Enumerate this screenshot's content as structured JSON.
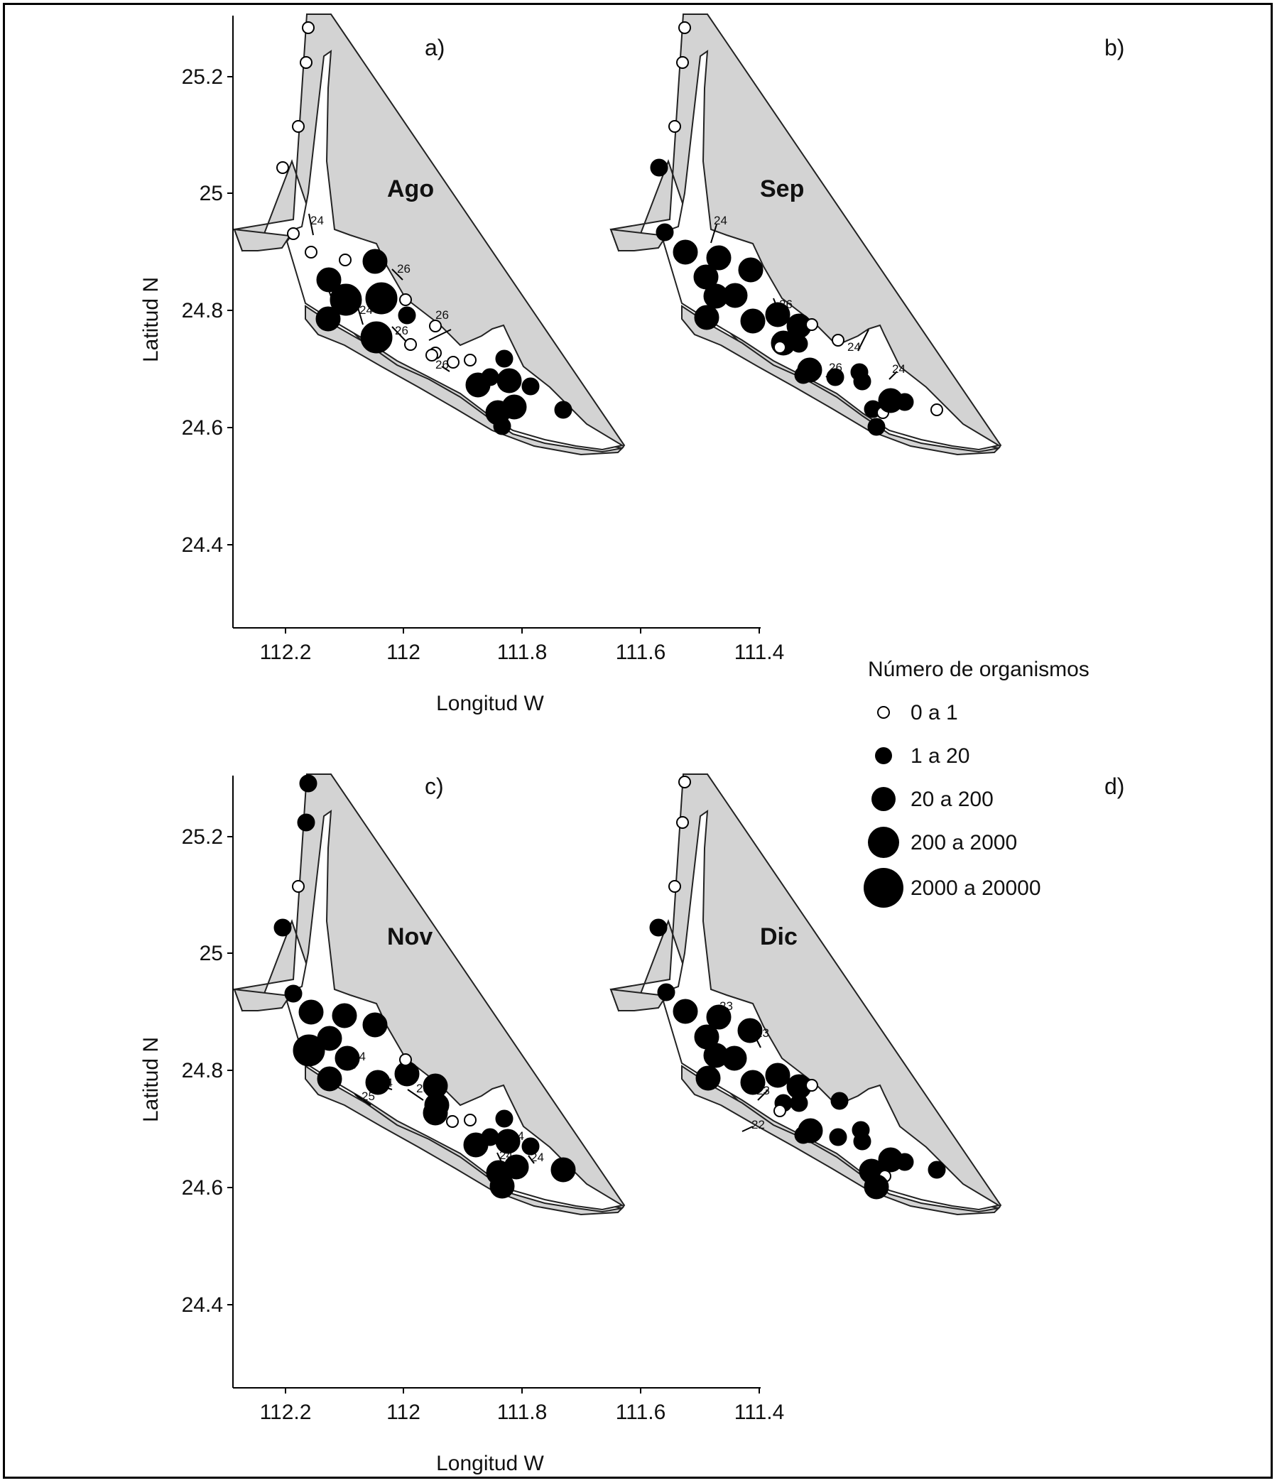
{
  "figure": {
    "x_label": "Longitud W",
    "y_label": "Latitud N",
    "x_ticks": [
      "112.2",
      "112",
      "111.8",
      "111.6",
      "111.4"
    ],
    "y_ticks": [
      "25.2",
      "25",
      "24.8",
      "24.6",
      "24.4"
    ]
  },
  "legend": {
    "title": "Número de organismos",
    "classes": [
      {
        "label": "0 a 1",
        "open": true
      },
      {
        "label": "1 a 20",
        "open": false
      },
      {
        "label": "20 a 200",
        "open": false
      },
      {
        "label": "200 a 2000",
        "open": false
      },
      {
        "label": "2000 a 20000",
        "open": false
      }
    ]
  },
  "panels": [
    {
      "letter": "a)",
      "month": "Ago",
      "isotherms": [
        "24",
        "24",
        "24",
        "26",
        "26",
        "26",
        "26",
        "26"
      ]
    },
    {
      "letter": "b)",
      "month": "Sep",
      "isotherms": [
        "24",
        "26",
        "26",
        "26",
        "24",
        "24"
      ]
    },
    {
      "letter": "c)",
      "month": "Nov",
      "isotherms": [
        "24",
        "24",
        "25",
        "25",
        "24",
        "24",
        "24"
      ]
    },
    {
      "letter": "d)",
      "month": "Dic",
      "isotherms": [
        "23",
        "23",
        "23",
        "22"
      ]
    }
  ],
  "colors": {
    "land": "#d3d3d3",
    "water": "#ffffff",
    "marker": "#000000"
  }
}
